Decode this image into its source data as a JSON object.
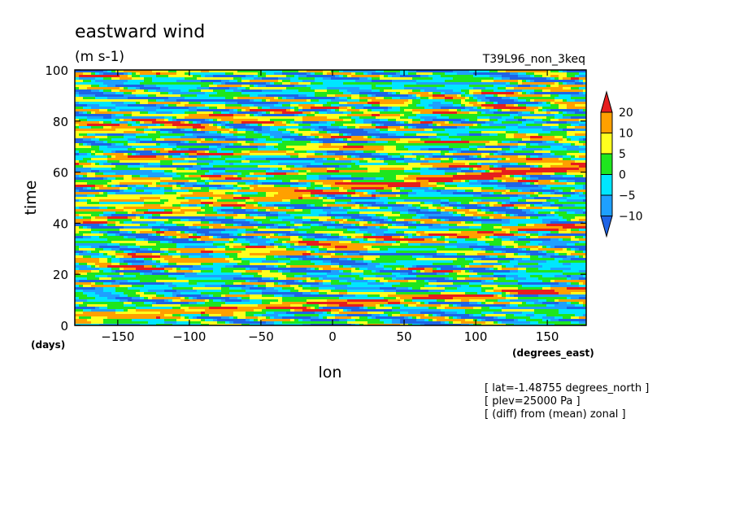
{
  "chart_data": {
    "type": "heatmap",
    "title": "eastward wind",
    "units": "(m s-1)",
    "run_label": "T39L96_non_3keq",
    "xlabel": "lon",
    "xunits": "(degrees_east)",
    "ylabel": "time",
    "yunits": "(days)",
    "xlim": [
      -180,
      177.1875
    ],
    "ylim": [
      0,
      100
    ],
    "xticks": [
      -150,
      -100,
      -50,
      0,
      50,
      100,
      150
    ],
    "yticks": [
      0,
      20,
      40,
      60,
      80,
      100
    ],
    "grid": false,
    "colorbar": {
      "placement": "right",
      "levels": [
        -10,
        -5,
        0,
        5,
        10,
        20
      ],
      "colors": [
        "#1e64e6",
        "#1ea0ff",
        "#00e6ff",
        "#1ee61e",
        "#ffff1e",
        "#ffa000",
        "#e61e1e"
      ],
      "extend": "both"
    },
    "description_fields": {
      "dominant_pattern": "eastward-propagating positive anomaly bands tilted upward to the east, on a mottled background of negative (blue) and near-zero (green/cyan) values"
    }
  },
  "annotations": [
    "[ lat=-1.48755 degrees_north ]",
    "[ plev=25000 Pa ]",
    "[ (diff) from (mean) zonal ]"
  ]
}
